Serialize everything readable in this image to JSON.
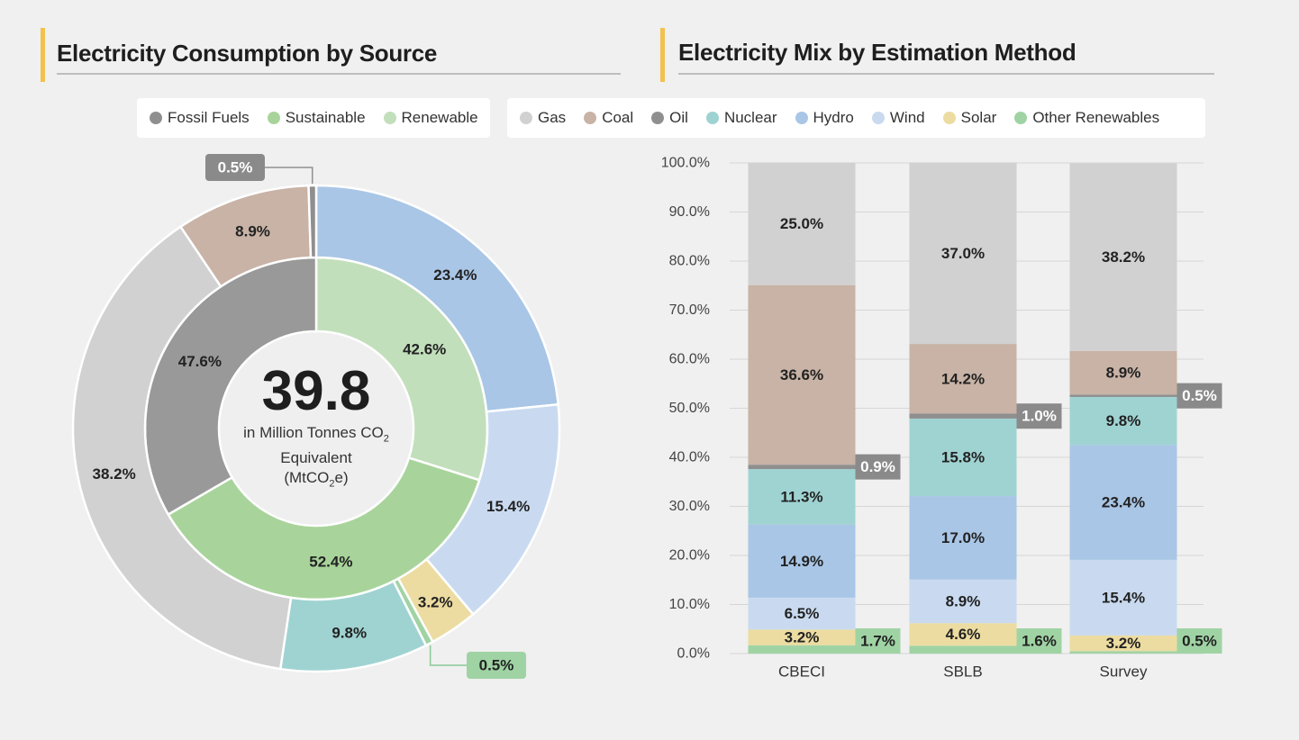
{
  "left_panel": {
    "title": "Electricity Consumption by Source",
    "legend": [
      {
        "label": "Fossil Fuels",
        "color": "#8f8f8f"
      },
      {
        "label": "Sustainable",
        "color": "#a8d49b"
      },
      {
        "label": "Renewable",
        "color": "#c2dfbb"
      }
    ],
    "center": {
      "value": "39.8",
      "line1": "in Million Tonnes CO",
      "line1_sub": "2",
      "line2": "Equivalent",
      "line3_pre": "(MtCO",
      "line3_sub": "2",
      "line3_post": "e)"
    }
  },
  "right_panel": {
    "title": "Electricity Mix by Estimation Method",
    "legend": [
      {
        "label": "Gas",
        "color": "#d1d1d1"
      },
      {
        "label": "Coal",
        "color": "#c8b3a6"
      },
      {
        "label": "Oil",
        "color": "#8f8f8f"
      },
      {
        "label": "Nuclear",
        "color": "#9fd3d2"
      },
      {
        "label": "Hydro",
        "color": "#a9c6e6"
      },
      {
        "label": "Wind",
        "color": "#c9daf0"
      },
      {
        "label": "Solar",
        "color": "#ecdca1"
      },
      {
        "label": "Other Renewables",
        "color": "#a0d3a4"
      }
    ]
  },
  "chart_data": [
    {
      "type": "pie",
      "title": "Electricity Consumption by Source",
      "inner_ring": [
        {
          "name": "Renewable",
          "value": 42.6,
          "label": "42.6%",
          "color": "#c2dfbb"
        },
        {
          "name": "Sustainable",
          "value": 52.4,
          "label": "52.4%",
          "color": "#a8d49b"
        },
        {
          "name": "Fossil Fuels",
          "value": 47.6,
          "label": "47.6%",
          "color": "#999999"
        }
      ],
      "outer_ring": [
        {
          "name": "Hydro",
          "value": 23.4,
          "label": "23.4%",
          "color": "#a9c6e6"
        },
        {
          "name": "Wind",
          "value": 15.4,
          "label": "15.4%",
          "color": "#c9daf0"
        },
        {
          "name": "Solar",
          "value": 3.2,
          "label": "3.2%",
          "color": "#ecdca1"
        },
        {
          "name": "Other Renewables",
          "value": 0.5,
          "label": "0.5%",
          "color": "#a0d3a4"
        },
        {
          "name": "Nuclear",
          "value": 9.8,
          "label": "9.8%",
          "color": "#9fd3d2"
        },
        {
          "name": "Gas",
          "value": 38.2,
          "label": "38.2%",
          "color": "#d1d1d1"
        },
        {
          "name": "Coal",
          "value": 8.9,
          "label": "8.9%",
          "color": "#c8b3a6"
        },
        {
          "name": "Oil",
          "value": 0.5,
          "label": "0.5%",
          "color": "#8f8f8f"
        }
      ]
    },
    {
      "type": "bar",
      "stacked": true,
      "title": "Electricity Mix by Estimation Method",
      "categories": [
        "CBECI",
        "SBLB",
        "Survey"
      ],
      "ylim": [
        0,
        100
      ],
      "y_ticks": [
        "0.0%",
        "10.0%",
        "20.0%",
        "30.0%",
        "40.0%",
        "50.0%",
        "60.0%",
        "70.0%",
        "80.0%",
        "90.0%",
        "100.0%"
      ],
      "grid": true,
      "series": [
        {
          "name": "Other Renewables",
          "color": "#a0d3a4",
          "values": [
            1.7,
            1.6,
            0.5
          ],
          "labels": [
            "1.7%",
            "1.6%",
            "0.5%"
          ]
        },
        {
          "name": "Solar",
          "color": "#ecdca1",
          "values": [
            3.2,
            4.6,
            3.2
          ],
          "labels": [
            "3.2%",
            "4.6%",
            "3.2%"
          ]
        },
        {
          "name": "Wind",
          "color": "#c9daf0",
          "values": [
            6.5,
            8.9,
            15.4
          ],
          "labels": [
            "6.5%",
            "8.9%",
            "15.4%"
          ]
        },
        {
          "name": "Hydro",
          "color": "#a9c6e6",
          "values": [
            14.9,
            17.0,
            23.4
          ],
          "labels": [
            "14.9%",
            "17.0%",
            "23.4%"
          ]
        },
        {
          "name": "Nuclear",
          "color": "#9fd3d2",
          "values": [
            11.3,
            15.8,
            9.8
          ],
          "labels": [
            "11.3%",
            "15.8%",
            "9.8%"
          ]
        },
        {
          "name": "Oil",
          "color": "#8f8f8f",
          "values": [
            0.9,
            1.0,
            0.5
          ],
          "labels": [
            "0.9%",
            "1.0%",
            "0.5%"
          ]
        },
        {
          "name": "Coal",
          "color": "#c8b3a6",
          "values": [
            36.6,
            14.2,
            8.9
          ],
          "labels": [
            "36.6%",
            "14.2%",
            "8.9%"
          ]
        },
        {
          "name": "Gas",
          "color": "#d1d1d1",
          "values": [
            25.0,
            37.0,
            38.2
          ],
          "labels": [
            "25.0%",
            "37.0%",
            "38.2%"
          ]
        }
      ]
    }
  ]
}
